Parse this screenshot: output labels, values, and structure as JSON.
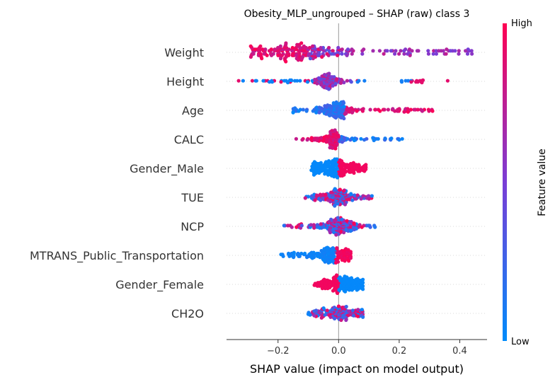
{
  "chart_data": {
    "type": "scatter",
    "title": "Obesity_MLP_ungrouped – SHAP (raw) class 3",
    "xlabel": "SHAP value (impact on model output)",
    "xlim": [
      -0.37,
      0.49
    ],
    "xticks": [
      -0.2,
      0.0,
      0.2,
      0.4
    ],
    "xtick_labels": [
      "−0.2",
      "0.0",
      "0.2",
      "0.4"
    ],
    "colorbar": {
      "label": "Feature value",
      "high": "High",
      "low": "Low",
      "colors": [
        "#008bfb",
        "#ff0052"
      ]
    },
    "features": [
      {
        "name": "Weight",
        "min": -0.29,
        "max": 0.44,
        "peak": -0.16,
        "core": [
          -0.24,
          0.02
        ],
        "skew": 1,
        "n": 230,
        "hw": 13,
        "mode": "weight"
      },
      {
        "name": "Height",
        "min": -0.33,
        "max": 0.36,
        "peak": -0.04,
        "core": [
          -0.07,
          0.0
        ],
        "skew": 0,
        "n": 200,
        "hw": 11,
        "mode": "height"
      },
      {
        "name": "Age",
        "min": -0.15,
        "max": 0.31,
        "peak": -0.01,
        "core": [
          -0.06,
          0.04
        ],
        "skew": 1,
        "n": 210,
        "hw": 12,
        "mode": "pos_high"
      },
      {
        "name": "CALC",
        "min": -0.14,
        "max": 0.21,
        "peak": -0.02,
        "core": [
          -0.04,
          0.01
        ],
        "skew": 0,
        "n": 200,
        "hw": 13,
        "mode": "neg_high"
      },
      {
        "name": "Gender_Male",
        "min": -0.09,
        "max": 0.09,
        "peak": 0.0,
        "core": [
          -0.06,
          0.04
        ],
        "skew": 0,
        "n": 220,
        "hw": 13,
        "mode": "gender_male"
      },
      {
        "name": "TUE",
        "min": -0.11,
        "max": 0.11,
        "peak": 0.0,
        "core": [
          -0.05,
          0.04
        ],
        "skew": 0,
        "n": 200,
        "hw": 12,
        "mode": "mixed"
      },
      {
        "name": "NCP",
        "min": -0.18,
        "max": 0.12,
        "peak": -0.01,
        "core": [
          -0.05,
          0.04
        ],
        "skew": 0,
        "n": 200,
        "hw": 12,
        "mode": "mixed"
      },
      {
        "name": "MTRANS_Public_Transportation",
        "min": -0.19,
        "max": 0.04,
        "peak": 0.0,
        "core": [
          -0.08,
          0.02
        ],
        "skew": 0,
        "n": 180,
        "hw": 11,
        "mode": "mtrans"
      },
      {
        "name": "Gender_Female",
        "min": -0.08,
        "max": 0.08,
        "peak": 0.0,
        "core": [
          -0.04,
          0.06
        ],
        "skew": 0,
        "n": 210,
        "hw": 13,
        "mode": "gender_female"
      },
      {
        "name": "CH2O",
        "min": -0.1,
        "max": 0.08,
        "peak": 0.0,
        "core": [
          -0.05,
          0.05
        ],
        "skew": 0,
        "n": 180,
        "hw": 10,
        "mode": "mixed"
      }
    ]
  }
}
